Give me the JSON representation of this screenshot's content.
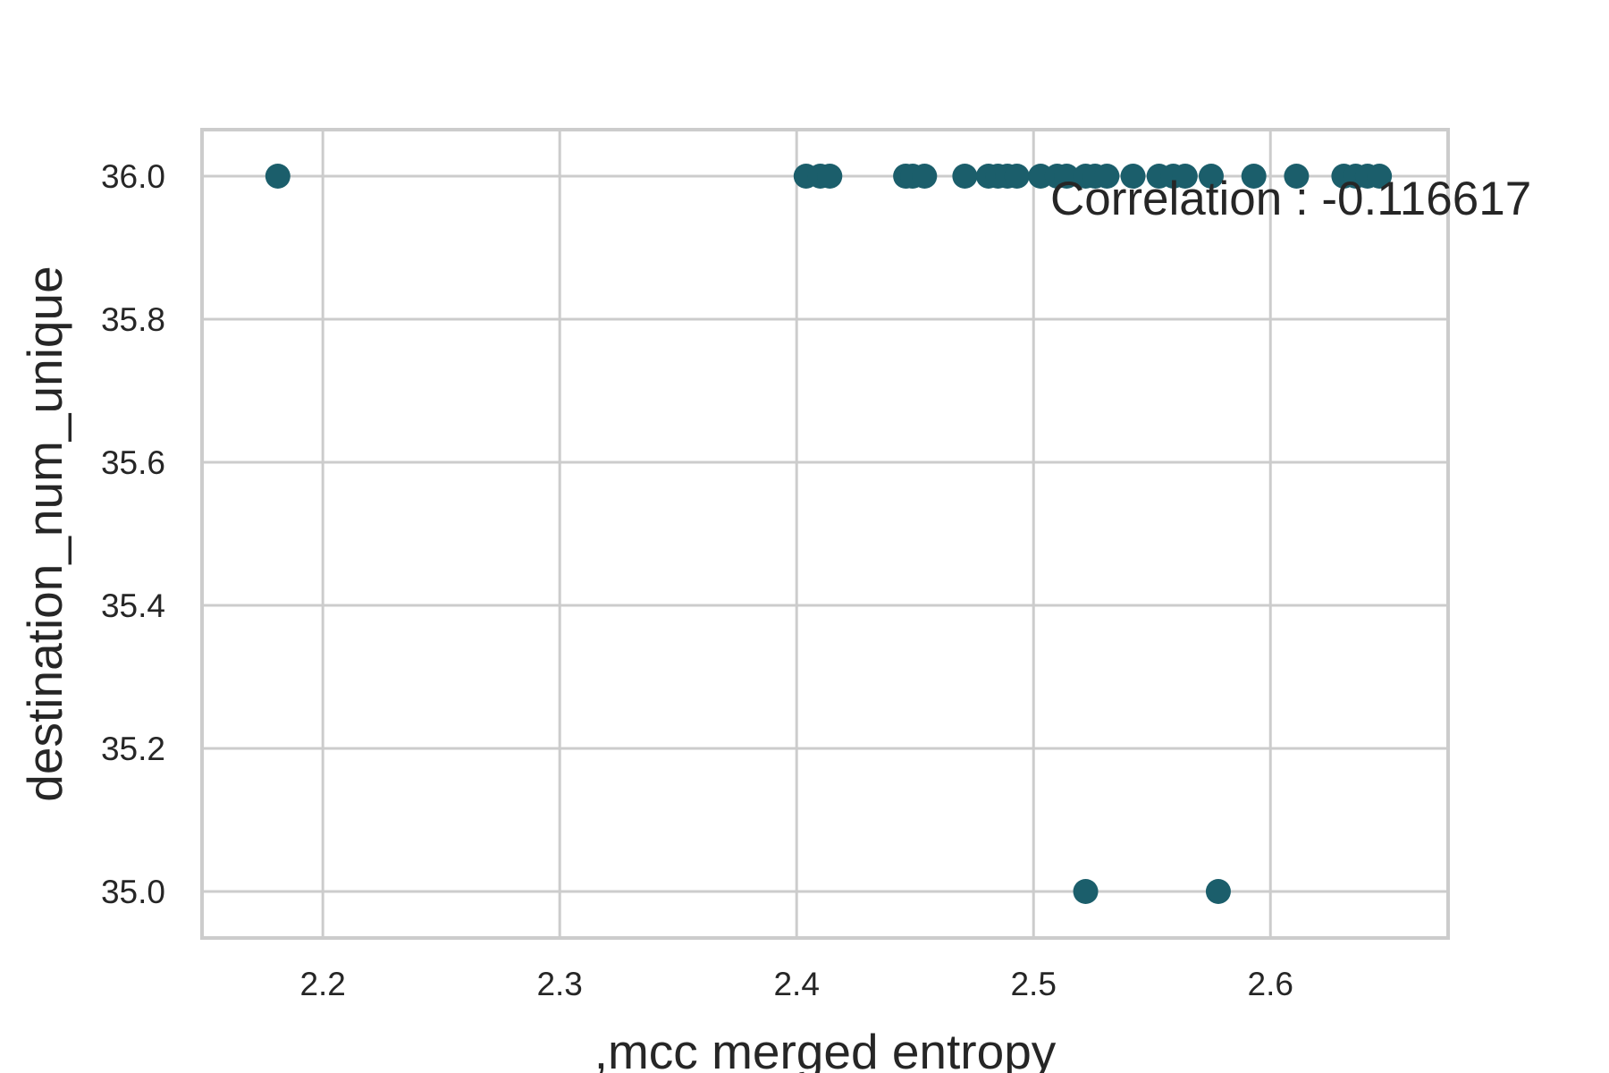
{
  "chart_data": {
    "type": "scatter",
    "title": "",
    "xlabel": ",mcc  merged  entropy",
    "ylabel": "destination_num_unique",
    "xlim": [
      2.149,
      2.675
    ],
    "ylim": [
      34.935,
      36.065
    ],
    "x_ticks": [
      "2.2",
      "2.3",
      "2.4",
      "2.5",
      "2.6"
    ],
    "y_ticks": [
      "36.0",
      "35.8",
      "35.6",
      "35.4",
      "35.2",
      "35.0"
    ],
    "grid": true,
    "marker_color": "#1b5e6b",
    "annotation": "Correlation : -0.116617",
    "points": [
      {
        "x": 2.181,
        "y": 36.0
      },
      {
        "x": 2.404,
        "y": 36.0
      },
      {
        "x": 2.41,
        "y": 36.0
      },
      {
        "x": 2.414,
        "y": 36.0
      },
      {
        "x": 2.446,
        "y": 36.0
      },
      {
        "x": 2.449,
        "y": 36.0
      },
      {
        "x": 2.454,
        "y": 36.0
      },
      {
        "x": 2.471,
        "y": 36.0
      },
      {
        "x": 2.481,
        "y": 36.0
      },
      {
        "x": 2.485,
        "y": 36.0
      },
      {
        "x": 2.489,
        "y": 36.0
      },
      {
        "x": 2.493,
        "y": 36.0
      },
      {
        "x": 2.503,
        "y": 36.0
      },
      {
        "x": 2.51,
        "y": 36.0
      },
      {
        "x": 2.514,
        "y": 36.0
      },
      {
        "x": 2.522,
        "y": 36.0
      },
      {
        "x": 2.526,
        "y": 36.0
      },
      {
        "x": 2.531,
        "y": 36.0
      },
      {
        "x": 2.542,
        "y": 36.0
      },
      {
        "x": 2.553,
        "y": 36.0
      },
      {
        "x": 2.559,
        "y": 36.0
      },
      {
        "x": 2.564,
        "y": 36.0
      },
      {
        "x": 2.575,
        "y": 36.0
      },
      {
        "x": 2.593,
        "y": 36.0
      },
      {
        "x": 2.611,
        "y": 36.0
      },
      {
        "x": 2.631,
        "y": 36.0
      },
      {
        "x": 2.636,
        "y": 36.0
      },
      {
        "x": 2.641,
        "y": 36.0
      },
      {
        "x": 2.646,
        "y": 36.0
      },
      {
        "x": 2.522,
        "y": 35.0
      },
      {
        "x": 2.578,
        "y": 35.0
      }
    ]
  }
}
